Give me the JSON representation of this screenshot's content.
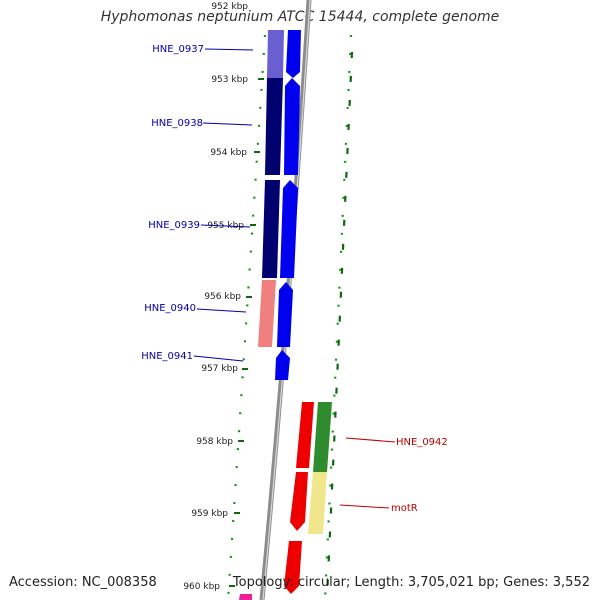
{
  "map": {
    "title": "Hyphomonas neptunium ATCC 15444, complete genome",
    "accession": "Accession: NC_008358",
    "summary": "Topology: circular; Length: 3,705,021 bp; Genes: 3,552"
  },
  "ticks": [
    "952 kbp",
    "953 kbp",
    "954 kbp",
    "955 kbp",
    "956 kbp",
    "957 kbp",
    "958 kbp",
    "959 kbp",
    "960 kbp"
  ],
  "genes": [
    {
      "name": "HNE_0937",
      "color": "#0000aa"
    },
    {
      "name": "HNE_0938",
      "color": "#0000aa"
    },
    {
      "name": "HNE_0939",
      "color": "#0000aa"
    },
    {
      "name": "HNE_0940",
      "color": "#0000aa"
    },
    {
      "name": "HNE_0941",
      "color": "#0000aa"
    },
    {
      "name": "HNE_0942",
      "color": "#bb0000"
    },
    {
      "name": "motR",
      "color": "#bb0000"
    }
  ],
  "colors": {
    "backbone": "#8c8c8c",
    "tick": "#116611",
    "dotted_ring": "#119911",
    "cds_reverse": "#0000ee",
    "cds_forward": "#ee0000",
    "cog_navy": "#00006e",
    "cog_lavender": "#6a5fd0",
    "cog_pink": "#f08080",
    "cog_green": "#2e8b2e",
    "cog_khaki": "#f0e68c",
    "cog_magenta": "#ee1f9a"
  }
}
